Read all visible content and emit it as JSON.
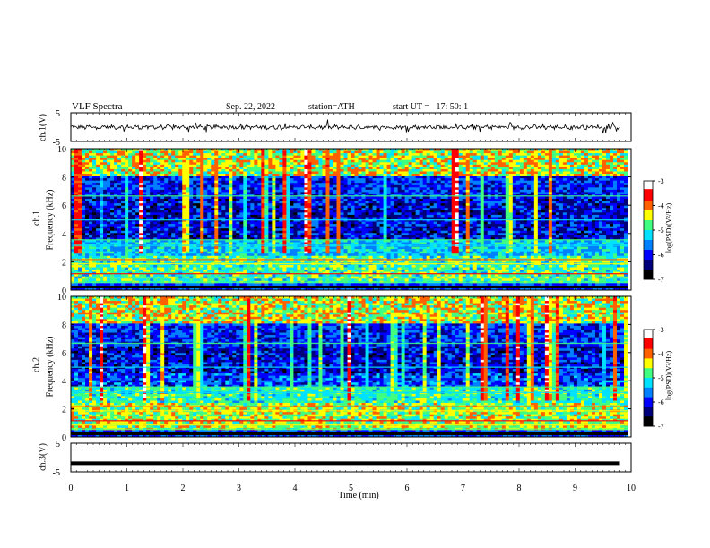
{
  "header": {
    "title": "VLF Spectra",
    "date": "Sep. 22, 2022",
    "station": "station=ATH",
    "start": "start UT =   17: 50: 1"
  },
  "colors": {
    "palette": [
      "#000000",
      "#00007a",
      "#0000ff",
      "#0080ff",
      "#00e0ff",
      "#40ff80",
      "#ffff00",
      "#ff6000",
      "#ff0000",
      "#ffffff"
    ]
  },
  "chart_data": [
    {
      "type": "line",
      "panel": "ch1-waveform",
      "ylabel": "ch.1(V)",
      "ylim": [
        -5,
        5
      ],
      "yticks": [
        "5",
        "-5"
      ],
      "x": [
        0,
        10
      ],
      "trace": "noisy waveform around 0 V spanning about 0 to 9.8 min"
    },
    {
      "type": "heatmap",
      "panel": "ch1-spectrogram",
      "ylabel": "ch.1 Frequency (kHz)",
      "ylim": [
        0,
        10
      ],
      "yticks": [
        "0",
        "2",
        "4",
        "6",
        "8",
        "10"
      ],
      "colorbar": {
        "label": "log(PSD)(V²/Hz)",
        "ticks": [
          "-3",
          "-4",
          "-5",
          "-6",
          "-7"
        ],
        "range": [
          -7,
          -3
        ]
      }
    },
    {
      "type": "heatmap",
      "panel": "ch2-spectrogram",
      "ylabel": "ch.2 Frequency (kHz)",
      "ylim": [
        0,
        10
      ],
      "yticks": [
        "0",
        "2",
        "4",
        "6",
        "8",
        "10"
      ],
      "colorbar": {
        "label": "log(PSD)(V²/Hz)",
        "ticks": [
          "-3",
          "-4",
          "-5",
          "-6",
          "-7"
        ],
        "range": [
          -7,
          -3
        ]
      }
    },
    {
      "type": "line",
      "panel": "ch3-waveform",
      "ylabel": "ch.3(V)",
      "ylim": [
        -5,
        5
      ],
      "yticks": [
        "5",
        "-5"
      ],
      "x": [
        0,
        9.8
      ],
      "trace": "flat thick line at about -2 V"
    }
  ],
  "xaxis": {
    "label": "Time (min)",
    "range": [
      0,
      10
    ],
    "ticks": [
      "0",
      "1",
      "2",
      "3",
      "4",
      "5",
      "6",
      "7",
      "8",
      "9",
      "10"
    ]
  },
  "labels": {
    "ch1_v": "ch.1(V)",
    "ch1_freq_a": "ch.1",
    "ch1_freq_b": "Frequency (kHz)",
    "ch2_freq_a": "ch.2",
    "ch2_freq_b": "Frequency (kHz)",
    "ch3_v": "ch.3(V)",
    "cbar1": "log(PSD)(V²/Hz)",
    "cbar2": "log(PSD)(V²/Hz)"
  }
}
